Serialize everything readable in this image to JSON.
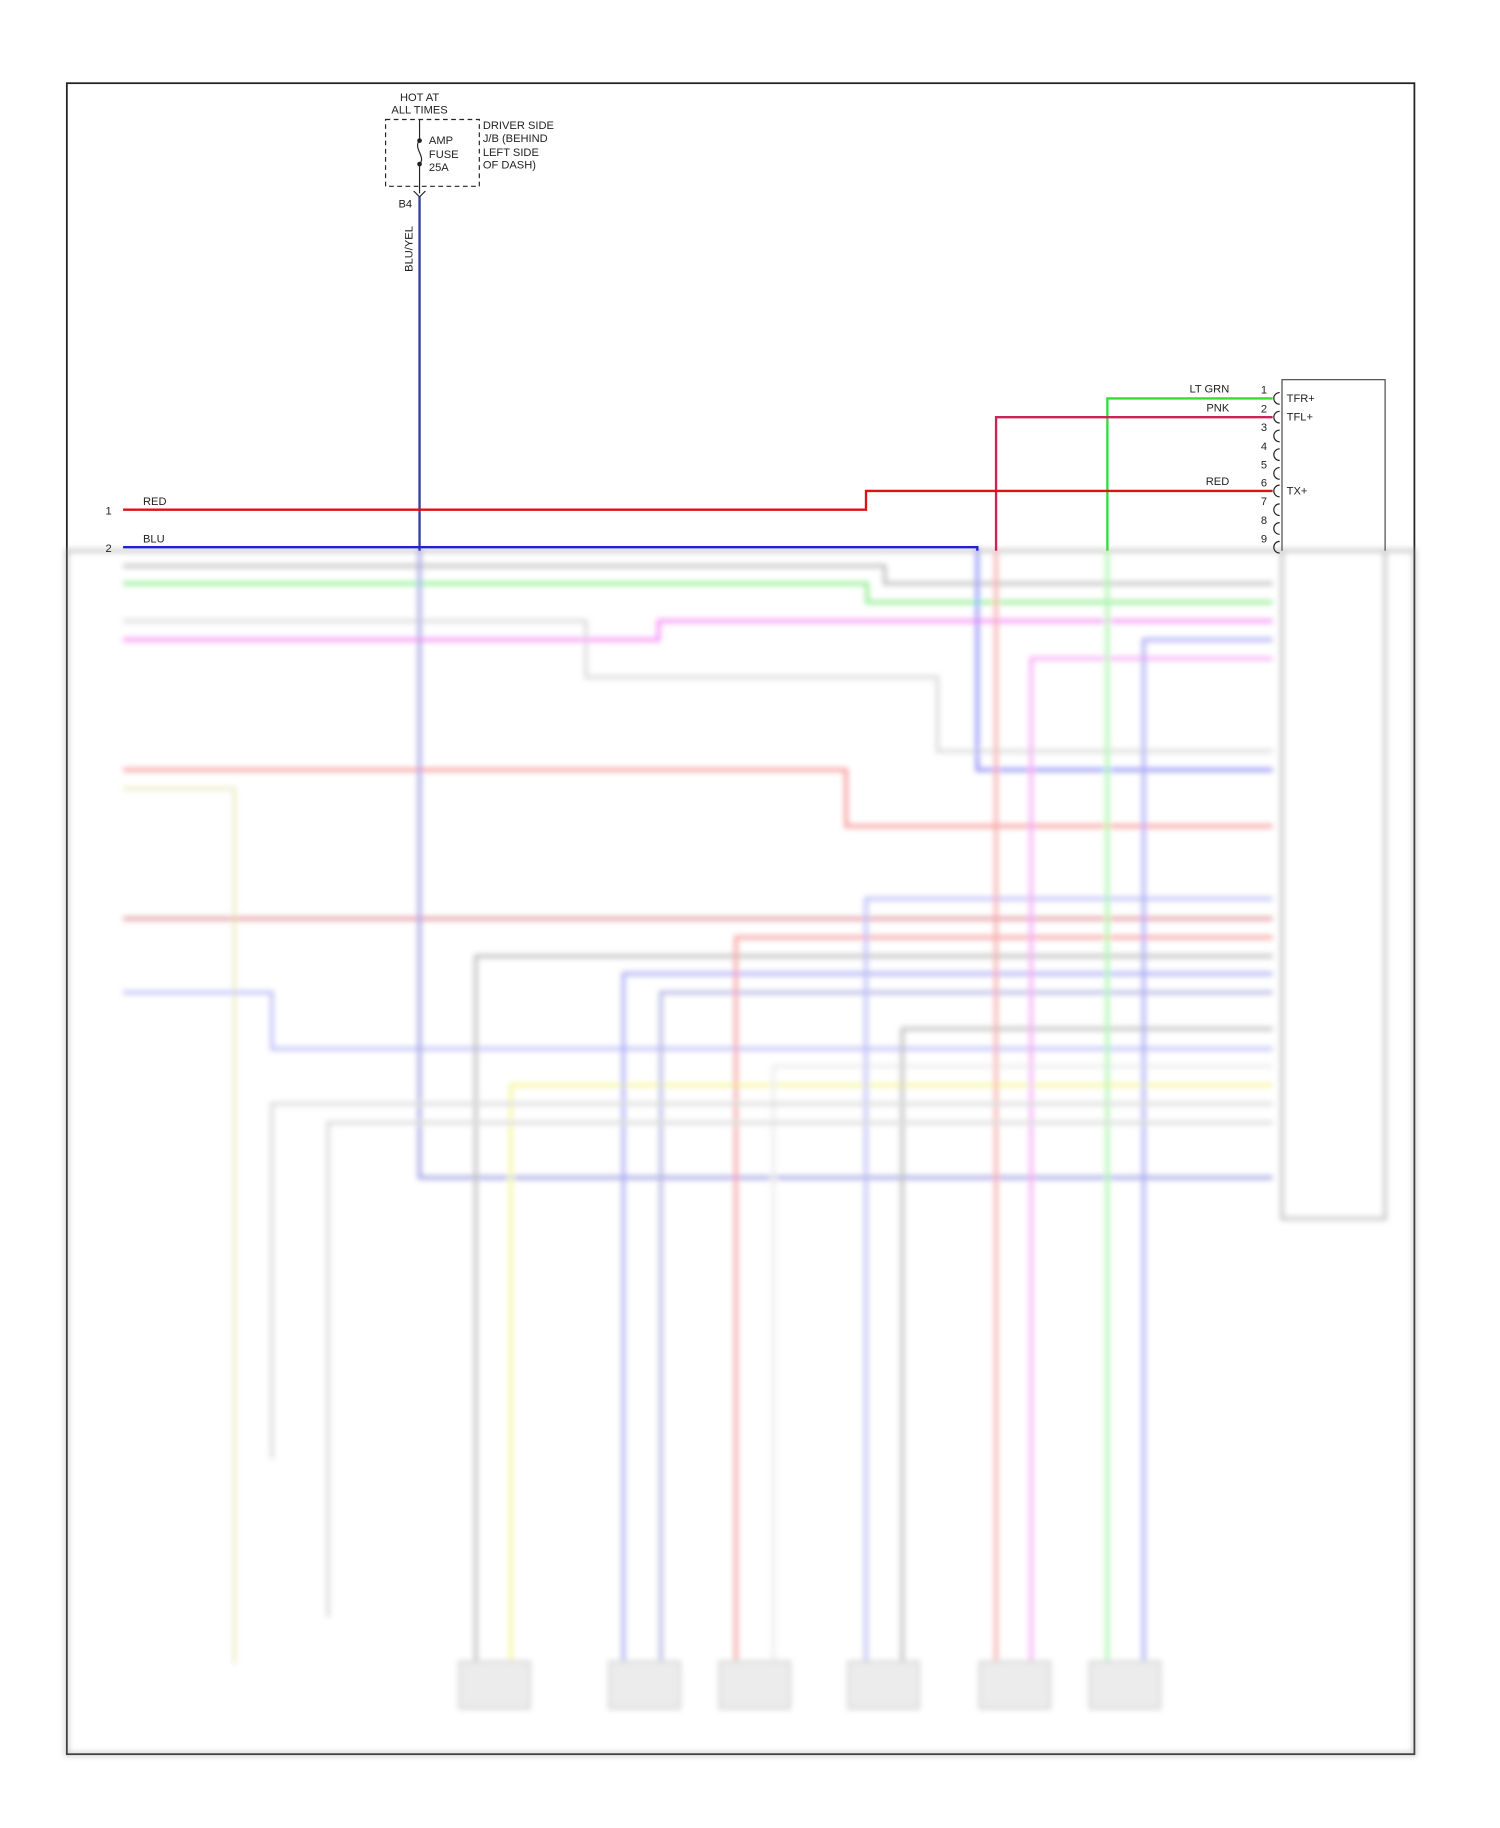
{
  "fuse": {
    "header": [
      "HOT AT",
      "ALL TIMES"
    ],
    "name": [
      "AMP",
      "FUSE",
      "25A"
    ],
    "location": [
      "DRIVER SIDE",
      "J/B (BEHIND",
      "LEFT SIDE",
      "OF DASH)"
    ],
    "connector": "B4",
    "wire": "BLU/YEL"
  },
  "module_pins": [
    {
      "pin": 1,
      "wire": "LT GRN",
      "signal": "TFR+"
    },
    {
      "pin": 2,
      "wire": "PNK",
      "signal": "TFL+"
    },
    {
      "pin": 3
    },
    {
      "pin": 4
    },
    {
      "pin": 5
    },
    {
      "pin": 6,
      "wire": "RED",
      "signal": "TX+"
    },
    {
      "pin": 7
    },
    {
      "pin": 8
    },
    {
      "pin": 9
    }
  ],
  "left_pins": [
    {
      "pin": 1,
      "wire": "RED"
    },
    {
      "pin": 2,
      "wire": "BLU"
    }
  ]
}
